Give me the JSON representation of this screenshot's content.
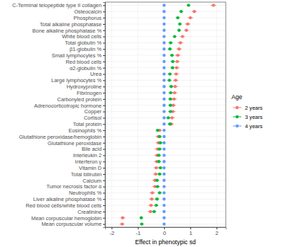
{
  "chart_data": {
    "type": "dot",
    "orientation": "horizontal",
    "grid": true,
    "legend": "right",
    "legend_title": "Age",
    "x_label": "Effect in phenotypic sd",
    "xlim": [
      -2.25,
      2.35
    ],
    "xticks": [
      -2,
      -1,
      0,
      1,
      2
    ],
    "categories": [
      "C-Terminal telopeptide type II collagen",
      "Osteocalcin",
      "Phosphorus",
      "Total alkaline phosphatase",
      "Bone alkaline phosphatase %",
      "White blood cells",
      "Total globulin %",
      "β1-globulin %",
      "Small lymphocytes %",
      "Red blood cells",
      "α2-globulin %",
      "Urea",
      "Large lymphocytes %",
      "Hydroxyproline",
      "Fibrinogen",
      "Carbonyled protein",
      "Adrenocorticotropic hormone",
      "Copper",
      "Cortisol",
      "Total protein",
      "Eosinophils %",
      "Glutathione peroxidase/hemoglobin",
      "Glutathione peroxidase",
      "Bile acid",
      "Interleukin 2",
      "Interferon γ",
      "Vitamin D",
      "Total bilirubin",
      "Calcium",
      "Tumor necrosis factor α",
      "Neutrophils %",
      "Liver alkaline phosphatase %",
      "Red blood cells/white blood cells",
      "Creatinine",
      "Mean corpuscular hemoglobin",
      "Mean corpuscular volume"
    ],
    "series": [
      {
        "name": "2 years",
        "color": "#F8766D",
        "marker": "circle",
        "values": [
          1.88,
          1.15,
          1.0,
          0.9,
          0.85,
          0.7,
          0.62,
          0.57,
          0.52,
          0.5,
          0.48,
          0.46,
          0.44,
          0.42,
          0.4,
          0.38,
          0.35,
          0.33,
          0.3,
          0.27,
          -0.17,
          -0.22,
          -0.22,
          -0.25,
          -0.27,
          -0.28,
          -0.3,
          -0.32,
          -0.35,
          -0.35,
          -0.45,
          -0.47,
          -0.5,
          -0.52,
          -1.58,
          -1.6
        ],
        "errors": [
          0.1,
          0.09,
          0.1,
          0.1,
          0.09,
          0.09,
          0.1,
          0.1,
          0.1,
          0.1,
          0.1,
          0.1,
          0.1,
          0.1,
          0.1,
          0.1,
          0.1,
          0.1,
          0.1,
          0.1,
          0.08,
          0.1,
          0.1,
          0.1,
          0.1,
          0.1,
          0.1,
          0.1,
          0.1,
          0.1,
          0.1,
          0.1,
          0.1,
          0.1,
          0.09,
          0.09
        ]
      },
      {
        "name": "3 years",
        "color": "#00BA38",
        "marker": "circle",
        "values": [
          0.93,
          0.65,
          0.52,
          0.6,
          0.57,
          0.4,
          0.25,
          0.22,
          0.3,
          0.33,
          0.32,
          0.22,
          0.2,
          0.27,
          0.25,
          0.24,
          0.24,
          0.24,
          0.16,
          0.22,
          -0.25,
          -0.17,
          -0.14,
          -0.17,
          -0.2,
          -0.2,
          -0.14,
          -0.17,
          -0.27,
          -0.25,
          -0.17,
          -0.27,
          -0.3,
          -0.38,
          -0.87,
          -0.85
        ],
        "errors": [
          0.07,
          0.07,
          0.08,
          0.07,
          0.07,
          0.07,
          0.08,
          0.08,
          0.08,
          0.08,
          0.08,
          0.08,
          0.08,
          0.08,
          0.08,
          0.08,
          0.08,
          0.08,
          0.08,
          0.08,
          0.07,
          0.08,
          0.08,
          0.08,
          0.08,
          0.08,
          0.08,
          0.08,
          0.08,
          0.08,
          0.08,
          0.08,
          0.08,
          0.08,
          0.07,
          0.07
        ]
      },
      {
        "name": "4 years",
        "color": "#619CFF",
        "marker": "circle",
        "values": [
          0,
          0,
          0,
          0,
          0,
          0,
          0,
          0,
          0,
          0,
          0,
          0,
          0,
          0,
          0,
          0,
          0,
          0,
          0,
          0,
          0,
          0,
          0,
          0,
          0,
          0,
          0,
          0,
          0,
          0,
          0,
          0,
          0,
          0,
          0,
          0
        ]
      }
    ]
  }
}
